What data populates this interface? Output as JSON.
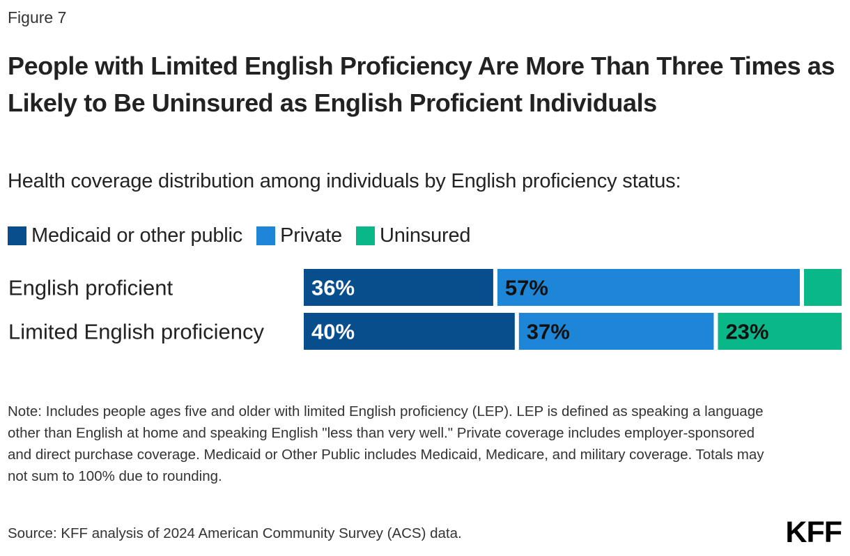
{
  "figure_label": "Figure 7",
  "title": "People with Limited English Proficiency Are More Than Three Times as Likely to Be Uninsured as English Proficient Individuals",
  "subtitle": "Health coverage distribution among individuals by English proficiency status:",
  "colors": {
    "medicaid": "#084d8c",
    "private": "#1d86d6",
    "uninsured": "#0ab788",
    "label_light": "#ffffff",
    "label_dark": "#111111"
  },
  "legend": [
    {
      "label": "Medicaid or other public",
      "color": "#084d8c"
    },
    {
      "label": "Private",
      "color": "#1d86d6"
    },
    {
      "label": "Uninsured",
      "color": "#0ab788"
    }
  ],
  "chart_data": {
    "type": "bar",
    "orientation": "horizontal",
    "stacked": true,
    "categories": [
      "English proficient",
      "Limited English proficiency"
    ],
    "series": [
      {
        "name": "Medicaid or other public",
        "values": [
          36,
          40
        ],
        "labels": [
          "36%",
          "40%"
        ]
      },
      {
        "name": "Private",
        "values": [
          57,
          37
        ],
        "labels": [
          "57%",
          "37%"
        ]
      },
      {
        "name": "Uninsured",
        "values": [
          7,
          23
        ],
        "labels": [
          "",
          "23%"
        ]
      }
    ],
    "xlim": [
      0,
      100
    ],
    "grid": false,
    "legend_position": "top-left"
  },
  "notes": "Note: Includes people ages five and older with limited English proficiency (LEP). LEP is defined as speaking a language other than English at home and speaking English \"less than very well.\" Private coverage includes employer-sponsored and direct purchase coverage. Medicaid or Other Public includes Medicaid, Medicare, and military coverage. Totals may not sum to 100% due to rounding.",
  "source": "Source: KFF analysis of 2024 American Community Survey (ACS) data.",
  "logo": "KFF"
}
